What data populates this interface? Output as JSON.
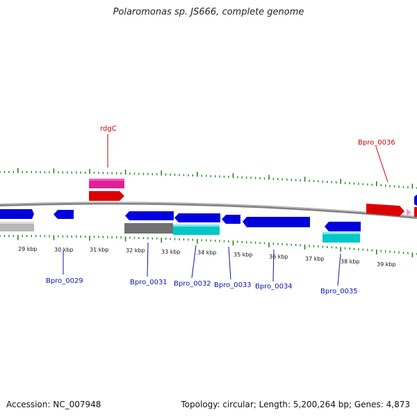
{
  "title": "Polaromonas sp. JS666, complete genome",
  "footer": {
    "accession": "Accession: NC_007948",
    "topology": "Topology: circular; Length: 5,200,264 bp; Genes: 4,873"
  },
  "colors": {
    "backbone": "#808080",
    "tick": "#1a8a1a",
    "forward_gene": "#0000dd",
    "reverse_gene": "#dd0000",
    "pseudo_gene": "#b8b8b8",
    "rna_gene": "#00c8c8",
    "highlight_gene": "#e0209a",
    "blue_label": "#1010b0",
    "red_label": "#c80000"
  },
  "scale_labels": [
    "29 kbp",
    "30 kbp",
    "31 kbp",
    "32 kbp",
    "33 kbp",
    "34 kbp",
    "35 kbp",
    "36 kbp",
    "37 kbp",
    "38 kbp",
    "39 kbp"
  ],
  "gene_labels": {
    "rdgC": "rdgC",
    "bpro_0036": "Bpro_0036",
    "bpro_0029": "Bpro_0029",
    "bpro_0031": "Bpro_0031",
    "bpro_0032": "Bpro_0032",
    "bpro_0033": "Bpro_0033",
    "bpro_0034": "Bpro_0034",
    "bpro_0035": "Bpro_0035"
  }
}
